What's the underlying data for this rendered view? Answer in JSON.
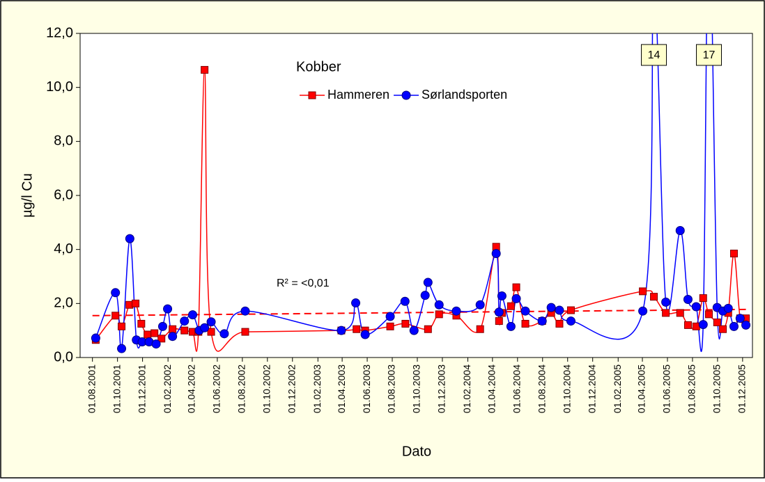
{
  "chart_data": {
    "type": "line",
    "title": "Kobber",
    "x_label": "Dato",
    "y_label": "µg/l Cu",
    "xlim": [
      "2001-07-02",
      "2005-12-25"
    ],
    "xticks": [
      {
        "value": "2001-08-01",
        "label": "01.08.2001"
      },
      {
        "value": "2001-10-01",
        "label": "01.10.2001"
      },
      {
        "value": "2001-12-01",
        "label": "01.12.2001"
      },
      {
        "value": "2002-02-01",
        "label": "01.02.2002"
      },
      {
        "value": "2002-04-01",
        "label": "01.04.2002"
      },
      {
        "value": "2002-06-01",
        "label": "01.06.2002"
      },
      {
        "value": "2002-08-01",
        "label": "01.08.2002"
      },
      {
        "value": "2002-10-01",
        "label": "01.10.2002"
      },
      {
        "value": "2002-12-01",
        "label": "01.12.2002"
      },
      {
        "value": "2003-02-01",
        "label": "01.02.2003"
      },
      {
        "value": "2003-04-01",
        "label": "01.04.2003"
      },
      {
        "value": "2003-06-01",
        "label": "01.06.2003"
      },
      {
        "value": "2003-08-01",
        "label": "01.08.2003"
      },
      {
        "value": "2003-10-01",
        "label": "01.10.2003"
      },
      {
        "value": "2003-12-01",
        "label": "01.12.2003"
      },
      {
        "value": "2004-02-01",
        "label": "01.02.2004"
      },
      {
        "value": "2004-04-01",
        "label": "01.04.2004"
      },
      {
        "value": "2004-06-01",
        "label": "01.06.2004"
      },
      {
        "value": "2004-08-01",
        "label": "01.08.2004"
      },
      {
        "value": "2004-10-01",
        "label": "01.10.2004"
      },
      {
        "value": "2004-12-01",
        "label": "01.12.2004"
      },
      {
        "value": "2005-02-01",
        "label": "01.02.2005"
      },
      {
        "value": "2005-04-01",
        "label": "01.04.2005"
      },
      {
        "value": "2005-06-01",
        "label": "01.06.2005"
      },
      {
        "value": "2005-08-01",
        "label": "01.08.2005"
      },
      {
        "value": "2005-10-01",
        "label": "01.10.2005"
      },
      {
        "value": "2005-12-01",
        "label": "01.12.2005"
      }
    ],
    "ylim": [
      0,
      12
    ],
    "yticks": [
      {
        "value": 0,
        "label": "0,0"
      },
      {
        "value": 2,
        "label": "2,0"
      },
      {
        "value": 4,
        "label": "4,0"
      },
      {
        "value": 6,
        "label": "6,0"
      },
      {
        "value": 8,
        "label": "8,0"
      },
      {
        "value": 10,
        "label": "10,0"
      },
      {
        "value": 12,
        "label": "12,0"
      }
    ],
    "grid": false,
    "series": [
      {
        "name": "Hammeren",
        "color": "#ff0000",
        "marker": "square",
        "x": [
          "2001-08-09",
          "2001-09-26",
          "2001-10-11",
          "2001-10-30",
          "2001-11-14",
          "2001-11-28",
          "2001-12-13",
          "2001-12-30",
          "2002-01-16",
          "2002-02-12",
          "2002-03-13",
          "2002-04-02",
          "2002-04-16",
          "2002-05-01",
          "2002-05-17",
          "2002-08-08",
          "2003-03-30",
          "2003-05-06",
          "2003-05-27",
          "2003-07-27",
          "2003-09-02",
          "2003-10-27",
          "2003-11-23",
          "2004-01-04",
          "2004-03-02",
          "2004-04-10",
          "2004-04-17",
          "2004-04-24",
          "2004-05-16",
          "2004-05-29",
          "2004-06-20",
          "2004-07-31",
          "2004-08-22",
          "2004-09-11",
          "2004-10-09",
          "2005-04-02",
          "2005-04-29",
          "2005-05-28",
          "2005-07-02",
          "2005-07-21",
          "2005-08-10",
          "2005-08-27",
          "2005-09-10",
          "2005-09-30",
          "2005-10-14",
          "2005-10-27",
          "2005-11-10",
          "2005-11-25",
          "2005-12-09"
        ],
        "values": [
          0.65,
          1.55,
          1.15,
          1.95,
          2.0,
          1.25,
          0.85,
          0.9,
          0.7,
          1.05,
          1.0,
          0.95,
          0.95,
          10.65,
          0.95,
          0.95,
          1.0,
          1.05,
          1.0,
          1.15,
          1.25,
          1.05,
          1.6,
          1.55,
          1.05,
          4.1,
          1.35,
          1.65,
          1.9,
          2.6,
          1.25,
          1.35,
          1.65,
          1.25,
          1.75,
          2.45,
          2.25,
          1.65,
          1.65,
          1.2,
          1.15,
          2.2,
          1.6,
          1.3,
          1.05,
          1.65,
          3.85,
          1.45,
          1.45
        ]
      },
      {
        "name": "Sørlandsporten",
        "color": "#0000ff",
        "marker": "circle",
        "x": [
          "2001-08-09",
          "2001-09-26",
          "2001-10-11",
          "2001-10-31",
          "2001-11-16",
          "2001-11-30",
          "2001-12-17",
          "2002-01-03",
          "2002-01-19",
          "2002-01-31",
          "2002-02-12",
          "2002-03-13",
          "2002-04-02",
          "2002-04-18",
          "2002-05-01",
          "2002-05-17",
          "2002-06-18",
          "2002-08-08",
          "2003-03-30",
          "2003-05-04",
          "2003-05-27",
          "2003-07-27",
          "2003-09-01",
          "2003-09-23",
          "2003-10-20",
          "2003-10-27",
          "2003-11-23",
          "2004-01-04",
          "2004-03-02",
          "2004-04-10",
          "2004-04-17",
          "2004-04-24",
          "2004-05-16",
          "2004-05-29",
          "2004-06-20",
          "2004-07-31",
          "2004-08-22",
          "2004-09-11",
          "2004-10-09",
          "2005-04-02",
          "2005-04-29",
          "2005-05-28",
          "2005-07-02",
          "2005-07-21",
          "2005-08-10",
          "2005-08-27",
          "2005-09-10",
          "2005-09-30",
          "2005-10-14",
          "2005-10-27",
          "2005-11-10",
          "2005-11-25",
          "2005-12-09"
        ],
        "values": [
          0.72,
          2.4,
          0.33,
          4.4,
          0.65,
          0.58,
          0.58,
          0.5,
          1.15,
          1.8,
          0.78,
          1.35,
          1.58,
          1.0,
          1.1,
          1.32,
          0.88,
          1.72,
          1.0,
          2.02,
          0.85,
          1.52,
          2.08,
          1.0,
          2.3,
          2.78,
          1.95,
          1.72,
          1.95,
          3.85,
          1.68,
          2.28,
          1.15,
          2.18,
          1.72,
          1.35,
          1.85,
          1.75,
          1.35,
          1.72,
          14,
          2.05,
          4.7,
          2.15,
          1.88,
          1.22,
          17,
          1.85,
          1.72,
          1.82,
          1.15,
          1.45,
          1.2
        ]
      }
    ],
    "trendline": {
      "color": "#ff0000",
      "x": [
        "2001-08-01",
        "2005-12-09"
      ],
      "values": [
        1.55,
        1.78
      ],
      "label": "R² = <0,01"
    }
  }
}
